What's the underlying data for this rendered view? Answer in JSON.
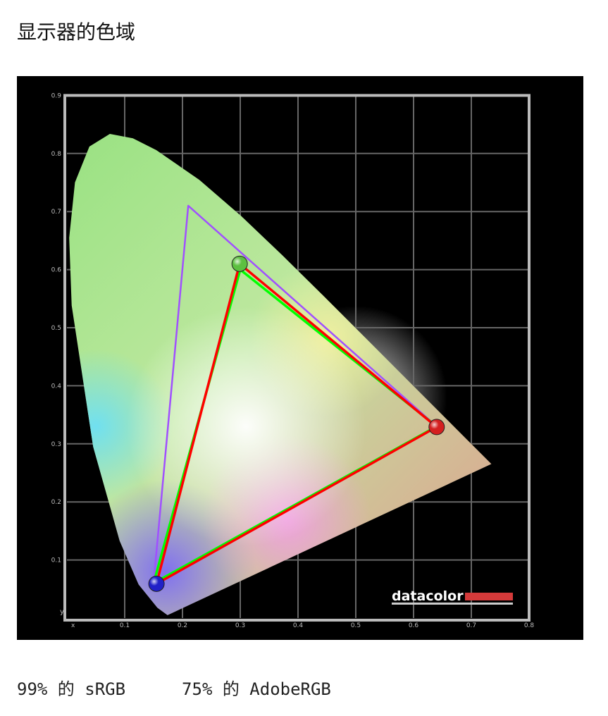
{
  "page": {
    "title": "显示器的色域"
  },
  "chart_data": {
    "type": "scatter",
    "title": "",
    "xlabel": "x",
    "ylabel": "y",
    "xlim": [
      0,
      0.8
    ],
    "ylim": [
      0,
      0.9
    ],
    "grid": true,
    "x_ticks": [
      "0.1",
      "0.2",
      "0.3",
      "0.4",
      "0.5",
      "0.6",
      "0.7",
      "0.8"
    ],
    "y_ticks": [
      "0.1",
      "0.2",
      "0.3",
      "0.4",
      "0.5",
      "0.6",
      "0.7",
      "0.8",
      "0.9"
    ],
    "spectral_locus": [
      [
        0.1741,
        0.005
      ],
      [
        0.1566,
        0.0177
      ],
      [
        0.1241,
        0.0578
      ],
      [
        0.0913,
        0.1327
      ],
      [
        0.0454,
        0.295
      ],
      [
        0.0082,
        0.5384
      ],
      [
        0.0039,
        0.6548
      ],
      [
        0.0139,
        0.7502
      ],
      [
        0.0389,
        0.812
      ],
      [
        0.0743,
        0.8338
      ],
      [
        0.1142,
        0.8262
      ],
      [
        0.1547,
        0.8059
      ],
      [
        0.2296,
        0.7543
      ],
      [
        0.3016,
        0.6923
      ],
      [
        0.3731,
        0.6245
      ],
      [
        0.4441,
        0.5547
      ],
      [
        0.5125,
        0.4866
      ],
      [
        0.5752,
        0.4242
      ],
      [
        0.627,
        0.3725
      ],
      [
        0.6915,
        0.3083
      ],
      [
        0.7347,
        0.2653
      ]
    ],
    "series": [
      {
        "key": "adobergb",
        "color": "#a050ff",
        "points": [
          [
            0.64,
            0.33
          ],
          [
            0.21,
            0.71
          ],
          [
            0.15,
            0.06
          ]
        ]
      },
      {
        "key": "srgb",
        "color": "#00ff00",
        "points": [
          [
            0.64,
            0.33
          ],
          [
            0.3,
            0.6
          ],
          [
            0.15,
            0.06
          ]
        ]
      },
      {
        "key": "measured",
        "color": "#ff0000",
        "points": [
          [
            0.64,
            0.329
          ],
          [
            0.299,
            0.61
          ],
          [
            0.155,
            0.059
          ]
        ]
      }
    ],
    "markers": [
      {
        "name": "red-primary",
        "x": 0.64,
        "y": 0.329,
        "color": "#d42020"
      },
      {
        "name": "green-primary",
        "x": 0.299,
        "y": 0.61,
        "color": "#5cc040"
      },
      {
        "name": "blue-primary",
        "x": 0.155,
        "y": 0.059,
        "color": "#2020c8"
      }
    ],
    "logo": "datacolor"
  },
  "footer": {
    "srgb": "99% 的 sRGB",
    "adobergb": "75% 的 AdobeRGB"
  }
}
